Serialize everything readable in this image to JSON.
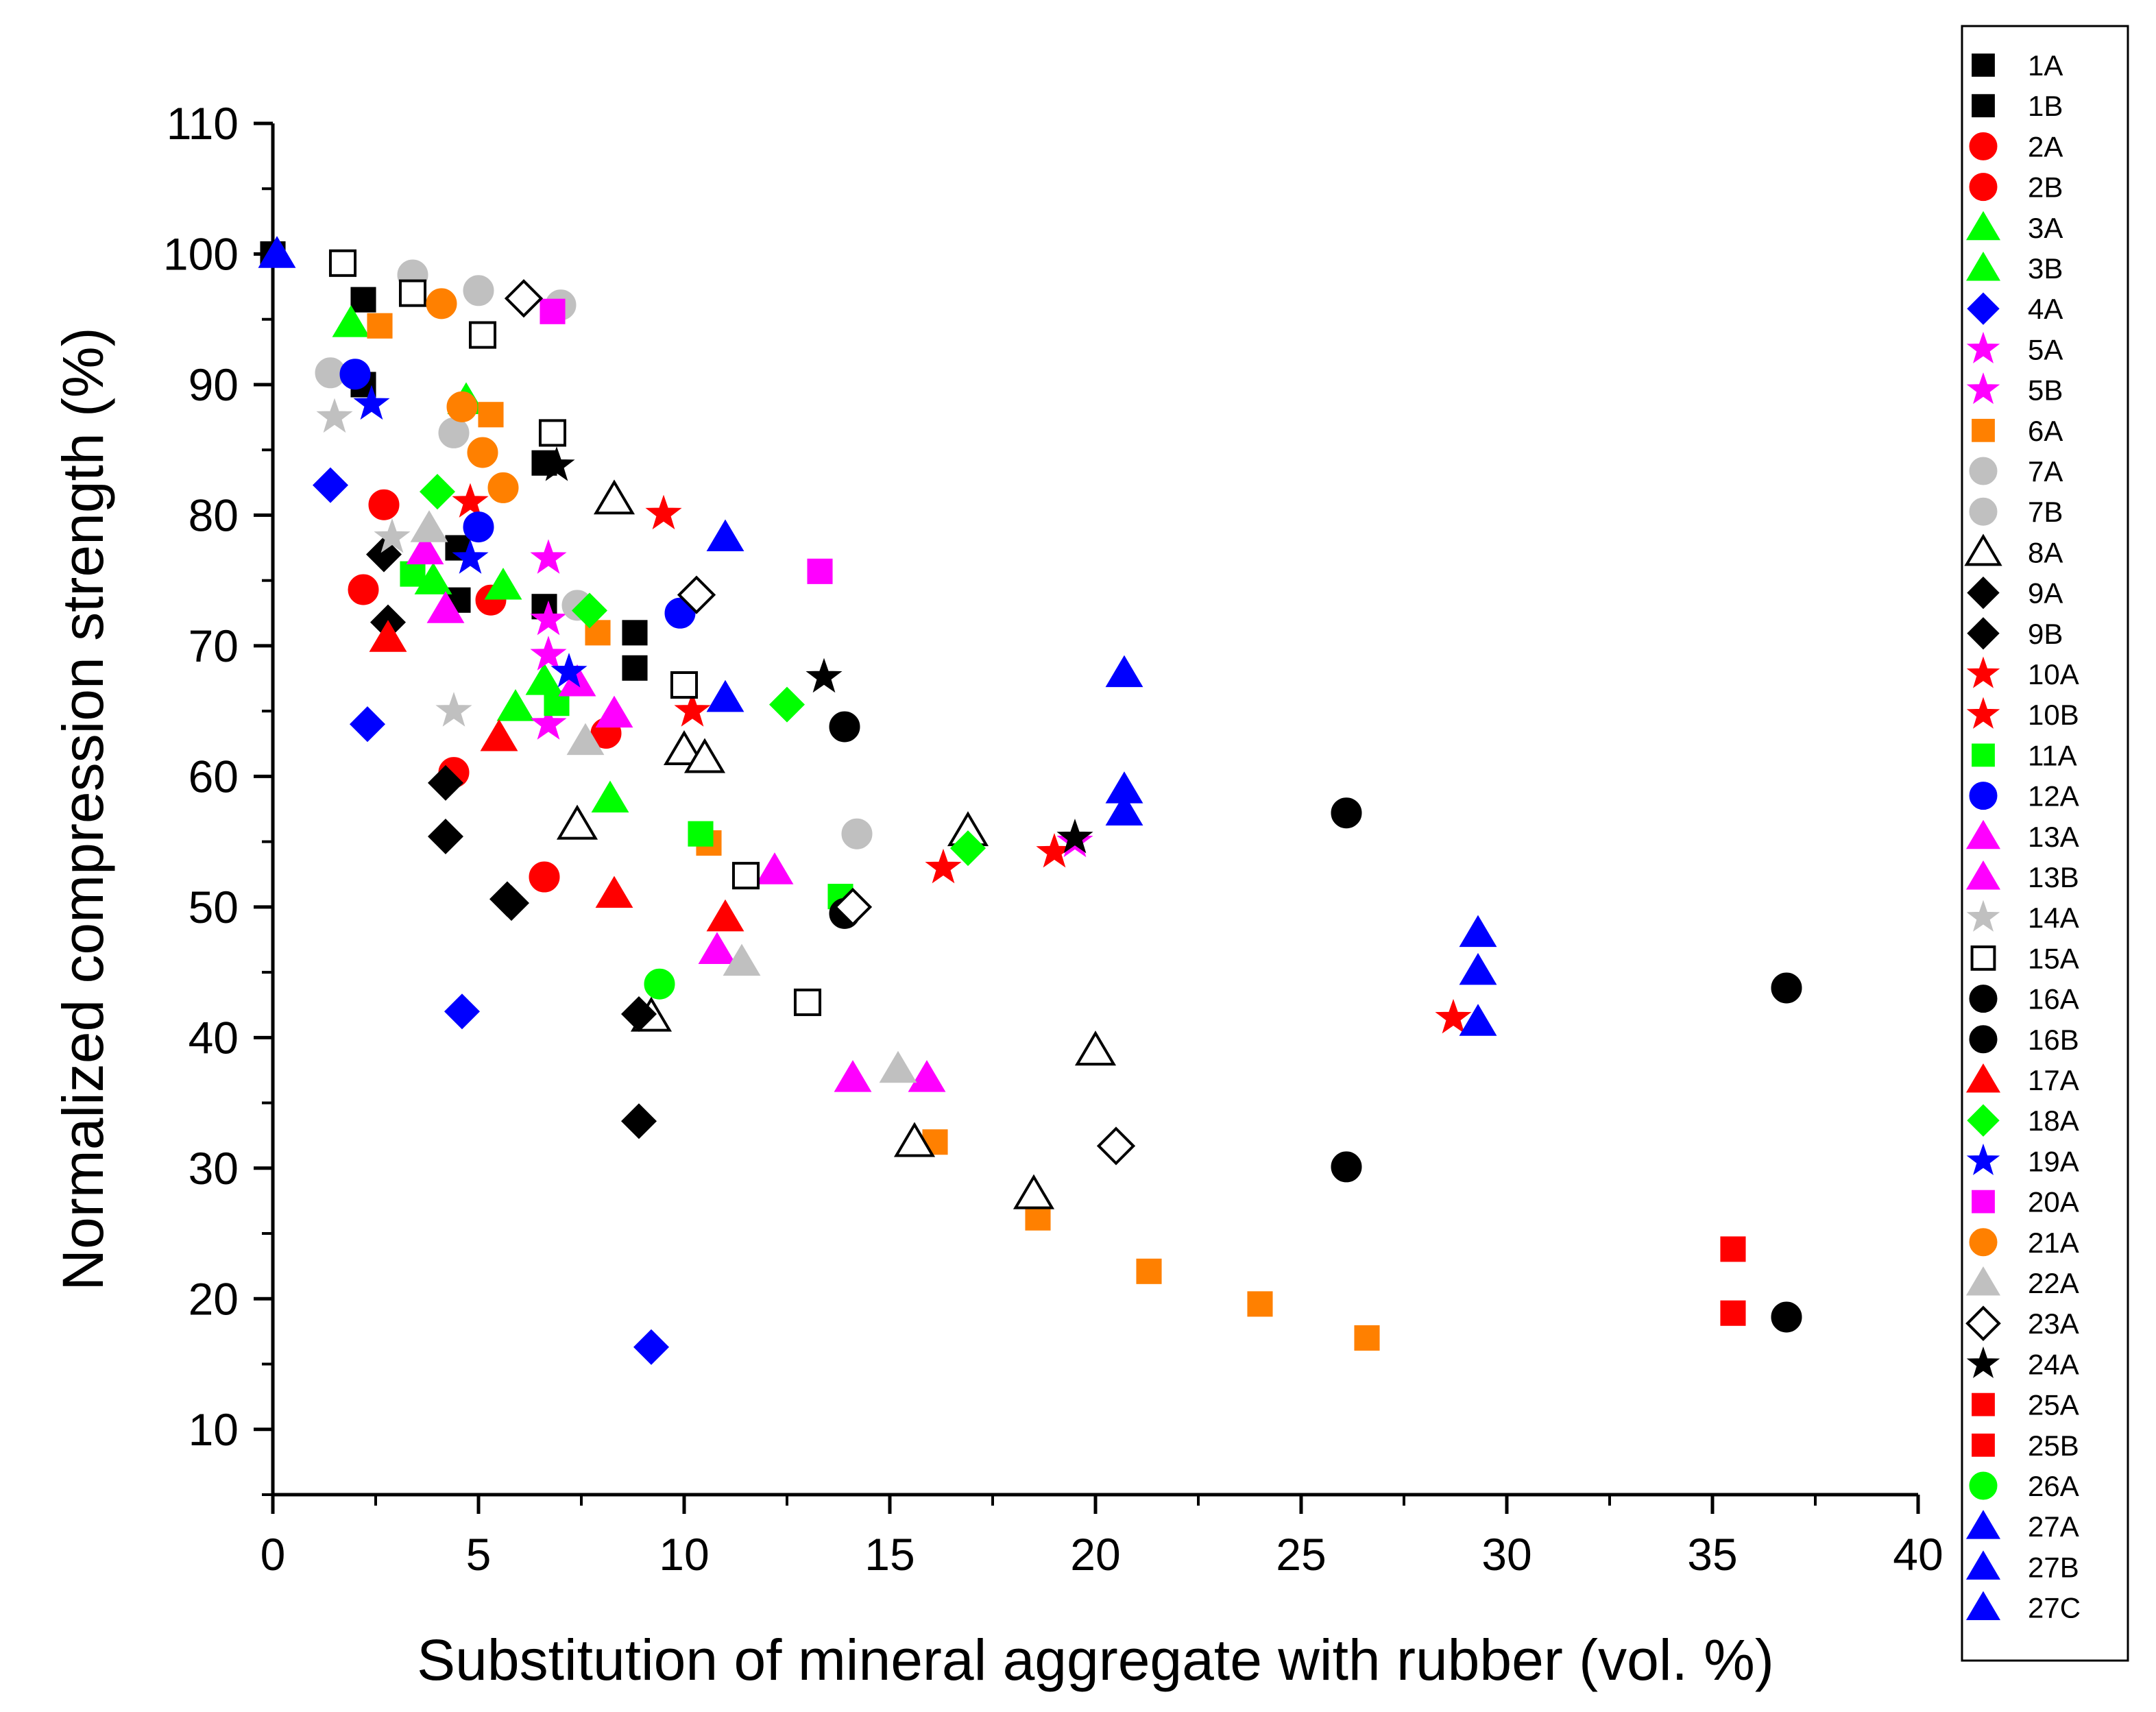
{
  "chart_data": {
    "type": "scatter",
    "title": "",
    "xlabel": "Substitution of mineral aggregate with rubber (vol. %)",
    "ylabel": "Normalized compression strength (%)",
    "xlim": [
      0,
      40
    ],
    "ylim": [
      5,
      110
    ],
    "xticks": [
      "0",
      "5",
      "10",
      "15",
      "20",
      "25",
      "30",
      "35",
      "40"
    ],
    "yticks": [
      "10",
      "20",
      "30",
      "40",
      "50",
      "60",
      "70",
      "80",
      "90",
      "100",
      "110"
    ],
    "grid": false,
    "legend_position": "right",
    "series": [
      {
        "name": "1A",
        "marker": "square",
        "color": "#000000",
        "filled": true,
        "points": [
          [
            0,
            100
          ],
          [
            2.2,
            96.5
          ],
          [
            4.5,
            77.5
          ],
          [
            6.6,
            84
          ],
          [
            8.8,
            71
          ]
        ]
      },
      {
        "name": "1B",
        "marker": "square",
        "color": "#000000",
        "filled": true,
        "points": [
          [
            2.2,
            90
          ],
          [
            4.5,
            73.5
          ],
          [
            6.6,
            73
          ],
          [
            8.8,
            68.3
          ]
        ]
      },
      {
        "name": "2A",
        "marker": "circle",
        "color": "#ff0000",
        "filled": true,
        "points": [
          [
            2.7,
            80.8
          ],
          [
            5.3,
            73.5
          ],
          [
            8.1,
            63.3
          ],
          [
            6.6,
            52.3
          ]
        ]
      },
      {
        "name": "2B",
        "marker": "circle",
        "color": "#ff0000",
        "filled": true,
        "points": [
          [
            2.2,
            74.3
          ],
          [
            4.4,
            60.3
          ]
        ]
      },
      {
        "name": "3A",
        "marker": "triangle",
        "color": "#00ff00",
        "filled": true,
        "points": [
          [
            1.9,
            94.7
          ],
          [
            4.7,
            88.8
          ],
          [
            5.6,
            74.6
          ],
          [
            8.2,
            58.3
          ]
        ]
      },
      {
        "name": "3B",
        "marker": "triangle",
        "color": "#00ff00",
        "filled": true,
        "points": [
          [
            3.9,
            75
          ],
          [
            6.6,
            67.3
          ],
          [
            5.9,
            65.3
          ]
        ]
      },
      {
        "name": "4A",
        "marker": "diamond",
        "color": "#0000ff",
        "filled": true,
        "points": [
          [
            1.4,
            82.3
          ],
          [
            2.3,
            64
          ],
          [
            4.6,
            42
          ],
          [
            9.2,
            16.3
          ]
        ]
      },
      {
        "name": "5A",
        "marker": "star",
        "color": "#ff00ff",
        "filled": true,
        "points": [
          [
            6.7,
            76.7
          ],
          [
            6.7,
            72
          ],
          [
            6.7,
            69.3
          ],
          [
            6.7,
            64
          ]
        ]
      },
      {
        "name": "5B",
        "marker": "star",
        "color": "#ff00ff",
        "filled": true,
        "points": [
          [
            19.5,
            55
          ]
        ]
      },
      {
        "name": "6A",
        "marker": "square",
        "color": "#ff8000",
        "filled": true,
        "points": [
          [
            2.6,
            94.5
          ],
          [
            5.3,
            87.7
          ],
          [
            7.9,
            71
          ],
          [
            10.6,
            54.9
          ],
          [
            16.1,
            32
          ],
          [
            18.6,
            26.2
          ],
          [
            21.3,
            22.1
          ],
          [
            24,
            19.6
          ],
          [
            26.6,
            17
          ]
        ]
      },
      {
        "name": "7A",
        "marker": "circle",
        "color": "#c0c0c0",
        "filled": true,
        "points": [
          [
            3.4,
            98.4
          ],
          [
            5,
            97.2
          ],
          [
            7,
            96.1
          ],
          [
            14.2,
            55.6
          ]
        ]
      },
      {
        "name": "7B",
        "marker": "circle",
        "color": "#c0c0c0",
        "filled": true,
        "points": [
          [
            1.4,
            90.9
          ],
          [
            4.4,
            86.3
          ],
          [
            7.4,
            73.1
          ]
        ]
      },
      {
        "name": "8A",
        "marker": "triangle",
        "color": "#000000",
        "filled": false,
        "points": [
          [
            8.3,
            81.2
          ],
          [
            7.4,
            56.3
          ],
          [
            10,
            62
          ],
          [
            10.5,
            61.4
          ],
          [
            9.2,
            41.6
          ],
          [
            15.6,
            32
          ],
          [
            16.9,
            55.8
          ],
          [
            18.5,
            28
          ],
          [
            20,
            39
          ]
        ]
      },
      {
        "name": "9A",
        "marker": "diamond",
        "color": "#000000",
        "filled": true,
        "points": [
          [
            2.7,
            77
          ],
          [
            4.2,
            59.5
          ],
          [
            5.8,
            50.3
          ],
          [
            8.9,
            41.8
          ]
        ]
      },
      {
        "name": "9B",
        "marker": "diamond",
        "color": "#000000",
        "filled": true,
        "points": [
          [
            2.8,
            71.8
          ],
          [
            4.2,
            55.4
          ],
          [
            5.7,
            50.6
          ],
          [
            8.9,
            33.6
          ]
        ]
      },
      {
        "name": "10A",
        "marker": "star",
        "color": "#ff0000",
        "filled": true,
        "points": [
          [
            4.8,
            81
          ],
          [
            9.5,
            80.1
          ],
          [
            10.2,
            65
          ],
          [
            16.3,
            53
          ],
          [
            19,
            54.2
          ],
          [
            28.7,
            41.5
          ]
        ]
      },
      {
        "name": "10B",
        "marker": "star",
        "color": "#ff0000",
        "filled": true,
        "points": []
      },
      {
        "name": "11A",
        "marker": "square",
        "color": "#00ff00",
        "filled": true,
        "points": [
          [
            3.4,
            75.5
          ],
          [
            6.9,
            65.6
          ],
          [
            10.4,
            55.6
          ],
          [
            13.8,
            50.8
          ]
        ]
      },
      {
        "name": "12A",
        "marker": "circle",
        "color": "#0000ff",
        "filled": true,
        "points": [
          [
            2,
            90.8
          ],
          [
            5,
            79.1
          ],
          [
            9.9,
            72.5
          ]
        ]
      },
      {
        "name": "13A",
        "marker": "triangle",
        "color": "#ff00ff",
        "filled": true,
        "points": [
          [
            3.7,
            77.3
          ],
          [
            7.4,
            67.2
          ],
          [
            12.2,
            52.8
          ],
          [
            15.9,
            36.9
          ]
        ]
      },
      {
        "name": "13B",
        "marker": "triangle",
        "color": "#ff00ff",
        "filled": true,
        "points": [
          [
            4.2,
            72.8
          ],
          [
            8.3,
            64.8
          ],
          [
            10.8,
            46.7
          ],
          [
            14.1,
            36.9
          ]
        ]
      },
      {
        "name": "14A",
        "marker": "star",
        "color": "#c0c0c0",
        "filled": true,
        "points": [
          [
            1.5,
            87.5
          ],
          [
            2.9,
            78.3
          ],
          [
            4.4,
            65
          ]
        ]
      },
      {
        "name": "15A",
        "marker": "square",
        "color": "#000000",
        "filled": false,
        "points": [
          [
            1.7,
            99.3
          ],
          [
            3.4,
            97
          ],
          [
            5.1,
            93.8
          ],
          [
            6.8,
            86.3
          ],
          [
            10,
            67
          ],
          [
            11.5,
            52.4
          ],
          [
            13,
            42.7
          ]
        ]
      },
      {
        "name": "16A",
        "marker": "circle",
        "color": "#000000",
        "filled": true,
        "points": [
          [
            13.9,
            63.8
          ],
          [
            26.1,
            57.2
          ],
          [
            36.8,
            43.8
          ]
        ]
      },
      {
        "name": "16B",
        "marker": "circle",
        "color": "#000000",
        "filled": true,
        "points": [
          [
            13.9,
            49.5
          ],
          [
            26.1,
            30.1
          ],
          [
            36.8,
            18.6
          ]
        ]
      },
      {
        "name": "17A",
        "marker": "triangle",
        "color": "#ff0000",
        "filled": true,
        "points": [
          [
            2.8,
            70.6
          ],
          [
            5.5,
            63
          ],
          [
            8.3,
            51
          ],
          [
            11,
            49.2
          ]
        ]
      },
      {
        "name": "18A",
        "marker": "diamond",
        "color": "#00ff00",
        "filled": true,
        "points": [
          [
            4,
            81.8
          ],
          [
            7.7,
            72.7
          ],
          [
            12.5,
            65.5
          ],
          [
            16.9,
            54.5
          ]
        ]
      },
      {
        "name": "19A",
        "marker": "star",
        "color": "#0000ff",
        "filled": true,
        "points": [
          [
            2.4,
            88.5
          ],
          [
            4.8,
            76.7
          ],
          [
            7.2,
            68
          ]
        ]
      },
      {
        "name": "20A",
        "marker": "square",
        "color": "#ff00ff",
        "filled": true,
        "points": [
          [
            6.8,
            95.6
          ],
          [
            13.3,
            75.7
          ]
        ]
      },
      {
        "name": "21A",
        "marker": "circle",
        "color": "#ff8000",
        "filled": true,
        "points": [
          [
            4.1,
            96.2
          ],
          [
            4.6,
            88.3
          ],
          [
            5.1,
            84.8
          ],
          [
            5.6,
            82.1
          ]
        ]
      },
      {
        "name": "22A",
        "marker": "triangle",
        "color": "#c0c0c0",
        "filled": true,
        "points": [
          [
            3.8,
            79
          ],
          [
            7.6,
            62.7
          ],
          [
            11.4,
            45.8
          ],
          [
            15.2,
            37.6
          ]
        ]
      },
      {
        "name": "23A",
        "marker": "diamond",
        "color": "#000000",
        "filled": false,
        "points": [
          [
            6.1,
            96.6
          ],
          [
            10.3,
            73.9
          ],
          [
            14.1,
            50
          ],
          [
            20.5,
            31.7
          ]
        ]
      },
      {
        "name": "24A",
        "marker": "star",
        "color": "#000000",
        "filled": true,
        "points": [
          [
            6.9,
            83.8
          ],
          [
            13.4,
            67.6
          ],
          [
            19.5,
            55.3
          ]
        ]
      },
      {
        "name": "25A",
        "marker": "square",
        "color": "#ff0000",
        "filled": true,
        "points": [
          [
            35.5,
            23.8
          ]
        ]
      },
      {
        "name": "25B",
        "marker": "square",
        "color": "#ff0000",
        "filled": true,
        "points": [
          [
            35.5,
            18.9
          ]
        ]
      },
      {
        "name": "26A",
        "marker": "circle",
        "color": "#00ff00",
        "filled": true,
        "points": [
          [
            9.4,
            44.1
          ]
        ]
      },
      {
        "name": "27A",
        "marker": "triangle",
        "color": "#0000ff",
        "filled": true,
        "points": [
          [
            0.1,
            100
          ],
          [
            11,
            78.3
          ],
          [
            20.7,
            67.9
          ],
          [
            29.3,
            48
          ]
        ]
      },
      {
        "name": "27B",
        "marker": "triangle",
        "color": "#0000ff",
        "filled": true,
        "points": [
          [
            11,
            66
          ],
          [
            20.7,
            59
          ],
          [
            29.3,
            45.1
          ]
        ]
      },
      {
        "name": "27C",
        "marker": "triangle",
        "color": "#0000ff",
        "filled": true,
        "points": [
          [
            20.7,
            57.3
          ],
          [
            29.3,
            41.2
          ]
        ]
      }
    ]
  }
}
